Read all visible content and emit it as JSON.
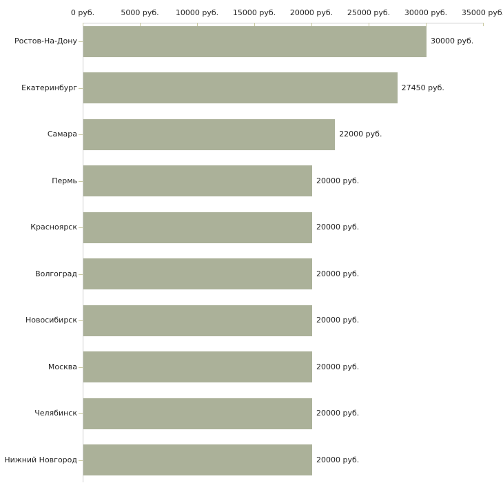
{
  "chart_data": {
    "type": "bar",
    "orientation": "horizontal",
    "title": "",
    "xlabel": "",
    "ylabel": "",
    "categories": [
      "Ростов-На-Дону",
      "Екатеринбург",
      "Самара",
      "Пермь",
      "Красноярск",
      "Волгоград",
      "Новосибирск",
      "Москва",
      "Челябинск",
      "Нижний Новгород"
    ],
    "values": [
      30000,
      27450,
      22000,
      20000,
      20000,
      20000,
      20000,
      20000,
      20000,
      20000
    ],
    "value_labels": [
      "30000 руб.",
      "27450 руб.",
      "22000 руб.",
      "20000 руб.",
      "20000 руб.",
      "20000 руб.",
      "20000 руб.",
      "20000 руб.",
      "20000 руб.",
      "20000 руб."
    ],
    "value_axis": {
      "position": "top",
      "min": 0,
      "max": 35000,
      "tick_step": 5000,
      "tick_values": [
        0,
        5000,
        10000,
        15000,
        20000,
        25000,
        30000,
        35000
      ],
      "tick_labels": [
        "0 руб.",
        "5000 руб.",
        "10000 руб.",
        "15000 руб.",
        "20000 руб.",
        "25000 руб.",
        "30000 руб.",
        "35000 руб."
      ]
    },
    "legend": null,
    "grid": false,
    "colors": {
      "bar": "#abb199",
      "axis_line": "#cccccc",
      "tick_mark": "#c9c9a0",
      "text": "#1f1f1f",
      "background": "#ffffff"
    }
  }
}
